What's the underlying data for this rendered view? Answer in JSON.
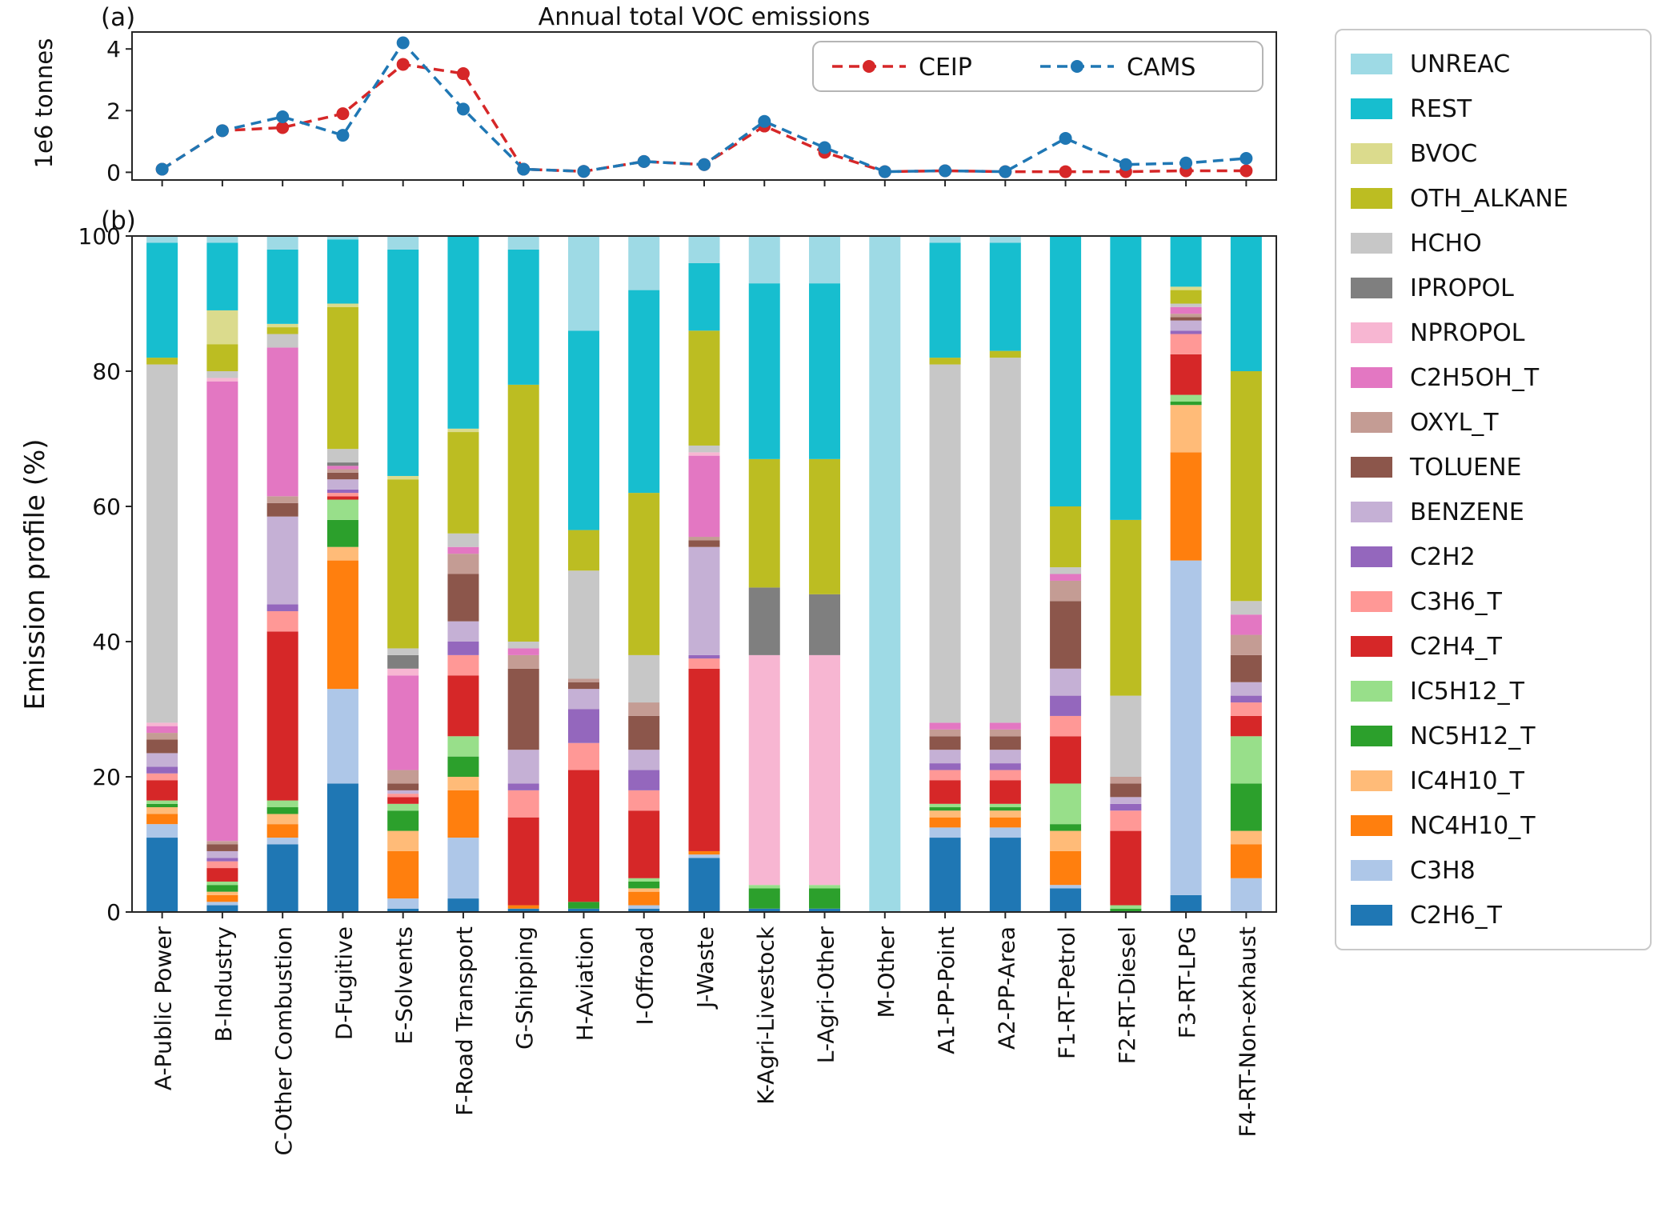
{
  "figure": {
    "title": "Annual total VOC emissions",
    "panel_a_label": "(a)",
    "panel_b_label": "(b)",
    "ylabel_a": "1e6 tonnes",
    "ylabel_b": "Emission profile (%)"
  },
  "chart_data": [
    {
      "type": "line",
      "title": "Annual total VOC emissions",
      "ylabel": "1e6 tonnes",
      "ylim": [
        -0.25,
        4.55
      ],
      "yticks": [
        0,
        2,
        4
      ],
      "legend_position": "upper right",
      "x": [
        "A-Public Power",
        "B-Industry",
        "C-Other Combustion",
        "D-Fugitive",
        "E-Solvents",
        "F-Road Transport",
        "G-Shipping",
        "H-Aviation",
        "I-Offroad",
        "J-Waste",
        "K-Agri-Livestock",
        "L-Agri-Other",
        "M-Other",
        "A1-PP-Point",
        "A2-PP-Area",
        "F1-RT-Petrol",
        "F2-RT-Diesel",
        "F3-RT-LPG",
        "F4-RT-Non-exhaust"
      ],
      "series": [
        {
          "name": "CEIP",
          "color": "#d62728",
          "values": [
            0.1,
            1.35,
            1.45,
            1.9,
            3.5,
            3.2,
            0.1,
            0.03,
            0.35,
            0.25,
            1.5,
            0.65,
            0.02,
            0.05,
            0.02,
            0.02,
            0.02,
            0.05,
            0.05
          ]
        },
        {
          "name": "CAMS",
          "color": "#1f77b4",
          "values": [
            0.1,
            1.35,
            1.8,
            1.2,
            4.2,
            2.05,
            0.1,
            0.03,
            0.35,
            0.25,
            1.65,
            0.8,
            0.02,
            0.05,
            0.02,
            1.1,
            0.25,
            0.3,
            0.45
          ]
        }
      ]
    },
    {
      "type": "bar",
      "stacked": true,
      "ylabel": "Emission profile (%)",
      "ylim": [
        0,
        100
      ],
      "yticks": [
        0,
        20,
        40,
        60,
        80,
        100
      ],
      "legend_position": "right outside",
      "categories": [
        "A-Public Power",
        "B-Industry",
        "C-Other Combustion",
        "D-Fugitive",
        "E-Solvents",
        "F-Road Transport",
        "G-Shipping",
        "H-Aviation",
        "I-Offroad",
        "J-Waste",
        "K-Agri-Livestock",
        "L-Agri-Other",
        "M-Other",
        "A1-PP-Point",
        "A2-PP-Area",
        "F1-RT-Petrol",
        "F2-RT-Diesel",
        "F3-RT-LPG",
        "F4-RT-Non-exhaust"
      ],
      "series": [
        {
          "name": "C2H6_T",
          "color": "#1f77b4",
          "values": [
            11,
            1,
            10,
            19,
            0.5,
            2,
            0.5,
            0.5,
            0.5,
            8,
            0.5,
            0.5,
            0,
            11,
            11,
            3.5,
            0,
            2.5,
            0
          ]
        },
        {
          "name": "C3H8",
          "color": "#aec7e8",
          "values": [
            2,
            0.5,
            1,
            14,
            1.5,
            9,
            0,
            0,
            0.5,
            0.5,
            0,
            0,
            0,
            1.5,
            1.5,
            0.5,
            0,
            49.5,
            5
          ]
        },
        {
          "name": "NC4H10_T",
          "color": "#ff7f0e",
          "values": [
            1.5,
            1,
            2,
            19,
            7,
            7,
            0.5,
            0,
            2,
            0.5,
            0,
            0,
            0,
            1.5,
            1.5,
            5,
            0,
            16,
            5
          ]
        },
        {
          "name": "IC4H10_T",
          "color": "#ffbb78",
          "values": [
            1,
            0.5,
            1.5,
            2,
            3,
            2,
            0,
            0,
            0.5,
            0,
            0,
            0,
            0,
            1,
            1,
            3,
            0,
            7,
            2
          ]
        },
        {
          "name": "NC5H12_T",
          "color": "#2ca02c",
          "values": [
            0.5,
            1,
            1,
            4,
            3,
            3,
            0,
            1,
            1,
            0,
            3,
            3,
            0,
            0.5,
            0.5,
            1,
            0.5,
            0.5,
            7
          ]
        },
        {
          "name": "IC5H12_T",
          "color": "#98df8a",
          "values": [
            0.5,
            0.5,
            1,
            3,
            1,
            3,
            0,
            0,
            0.5,
            0,
            0.5,
            0.5,
            0,
            0.5,
            0.5,
            6,
            0.5,
            1,
            7
          ]
        },
        {
          "name": "C2H4_T",
          "color": "#d62728",
          "values": [
            3,
            2,
            25,
            0.5,
            1,
            9,
            13,
            19.5,
            10,
            27,
            0,
            0,
            0,
            3.5,
            3.5,
            7,
            11,
            6,
            3
          ]
        },
        {
          "name": "C3H6_T",
          "color": "#ff9896",
          "values": [
            1,
            1,
            3,
            0.5,
            0.5,
            3,
            4,
            4,
            3,
            1.5,
            0,
            0,
            0,
            1.5,
            1.5,
            3,
            3,
            3,
            2
          ]
        },
        {
          "name": "C2H2",
          "color": "#9467bd",
          "values": [
            1,
            0.5,
            1,
            0.5,
            0,
            2,
            1,
            5,
            3,
            0.5,
            0,
            0,
            0,
            1,
            1,
            3,
            1,
            0.5,
            1
          ]
        },
        {
          "name": "BENZENE",
          "color": "#c5b0d5",
          "values": [
            2,
            1,
            13,
            1.5,
            0.5,
            3,
            5,
            3,
            3,
            16,
            0,
            0,
            0,
            2,
            2,
            4,
            1,
            1.5,
            2
          ]
        },
        {
          "name": "TOLUENE",
          "color": "#8c564b",
          "values": [
            2,
            1,
            2,
            1,
            1,
            7,
            12,
            1,
            5,
            1,
            0,
            0,
            0,
            2,
            2,
            10,
            2,
            0.5,
            4
          ]
        },
        {
          "name": "OXYL_T",
          "color": "#c49c94",
          "values": [
            1,
            0.5,
            1,
            0.5,
            2,
            3,
            2,
            0.5,
            2,
            0.5,
            0,
            0,
            0,
            1,
            1,
            3,
            1,
            0.5,
            3
          ]
        },
        {
          "name": "C2H5OH_T",
          "color": "#e377c2",
          "values": [
            1,
            68,
            22,
            0.5,
            14,
            1,
            1,
            0,
            0,
            12,
            0,
            0,
            0,
            1,
            1,
            1,
            0,
            1,
            3
          ]
        },
        {
          "name": "NPROPOL",
          "color": "#f7b6d2",
          "values": [
            0.5,
            0.5,
            0,
            0,
            1,
            0,
            0,
            0,
            0,
            0.5,
            34,
            34,
            0,
            0,
            0,
            0,
            0,
            0,
            0
          ]
        },
        {
          "name": "IPROPOL",
          "color": "#7f7f7f",
          "values": [
            0,
            0,
            0,
            0.5,
            2,
            0,
            0,
            0,
            0,
            0,
            10,
            9,
            0,
            0,
            0,
            0,
            0,
            0,
            0
          ]
        },
        {
          "name": "HCHO",
          "color": "#c7c7c7",
          "values": [
            53,
            1,
            2,
            2,
            1,
            2,
            1,
            16,
            7,
            1,
            0,
            0,
            0,
            53,
            54,
            1,
            12,
            0.5,
            2
          ]
        },
        {
          "name": "OTH_ALKANE",
          "color": "#bcbd22",
          "values": [
            1,
            4,
            1,
            21,
            25,
            15,
            38,
            6,
            24,
            17,
            19,
            20,
            0,
            1,
            1,
            9,
            26,
            2,
            34
          ]
        },
        {
          "name": "BVOC",
          "color": "#dbdb8d",
          "values": [
            0,
            5,
            0.5,
            0.5,
            0.5,
            0.5,
            0,
            0,
            0,
            0,
            0,
            0,
            0,
            0,
            0,
            0,
            0,
            0.5,
            0
          ]
        },
        {
          "name": "REST",
          "color": "#17becf",
          "values": [
            17,
            10,
            11,
            9.5,
            33.5,
            28.5,
            20,
            29.5,
            30,
            10,
            26,
            26,
            0,
            17,
            16,
            40,
            42,
            7.5,
            20
          ]
        },
        {
          "name": "UNREAC",
          "color": "#9edae5",
          "values": [
            1,
            1,
            2,
            0.5,
            2,
            0,
            2,
            14,
            8,
            4,
            7,
            7,
            100,
            1,
            1,
            0,
            0,
            0,
            0
          ]
        }
      ]
    }
  ]
}
